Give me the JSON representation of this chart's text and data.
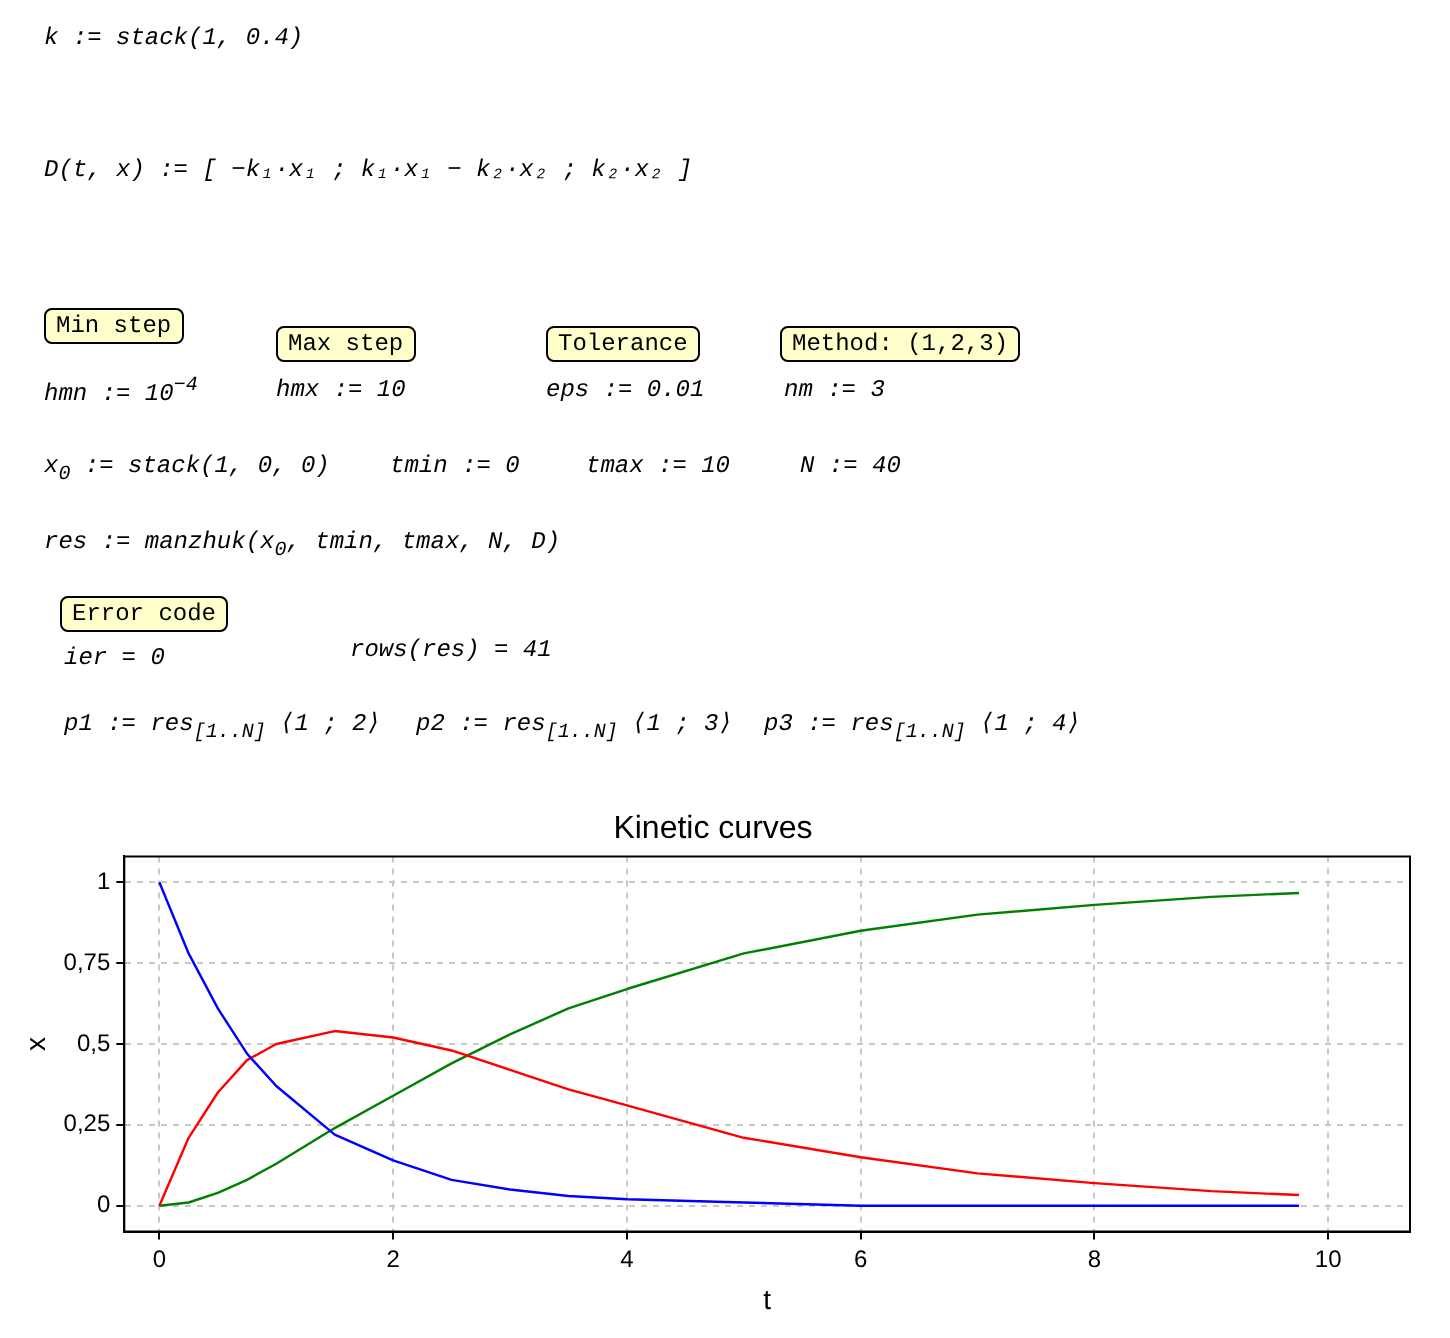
{
  "chart_data": {
    "type": "line",
    "title": "Kinetic curves",
    "xlabel": "t",
    "ylabel": "x",
    "x": [
      0,
      0.25,
      0.5,
      0.75,
      1,
      1.5,
      2,
      2.5,
      3,
      3.5,
      4,
      5,
      6,
      7,
      8,
      9,
      9.75
    ],
    "series": [
      {
        "color": "#0000ff",
        "values": [
          1,
          0.78,
          0.61,
          0.47,
          0.37,
          0.22,
          0.14,
          0.08,
          0.05,
          0.03,
          0.02,
          0.01,
          0,
          0,
          0,
          0,
          0
        ]
      },
      {
        "color": "#ff0000",
        "values": [
          0,
          0.21,
          0.35,
          0.45,
          0.5,
          0.54,
          0.52,
          0.48,
          0.42,
          0.36,
          0.31,
          0.21,
          0.15,
          0.1,
          0.07,
          0.045,
          0.033
        ]
      },
      {
        "color": "#008000",
        "values": [
          0,
          0.01,
          0.04,
          0.08,
          0.13,
          0.24,
          0.34,
          0.44,
          0.53,
          0.61,
          0.67,
          0.78,
          0.85,
          0.9,
          0.93,
          0.955,
          0.967
        ]
      }
    ],
    "xlim": [
      -0.3,
      10.7
    ],
    "xticks": [
      0,
      2,
      4,
      6,
      8,
      10
    ],
    "ylim": [
      -0.08,
      1.08
    ],
    "yticks": [
      0,
      {
        "value": 0.25,
        "label": "0,25"
      },
      {
        "value": 0.5,
        "label": "0,5"
      },
      {
        "value": 0.75,
        "label": "0,75"
      },
      1
    ],
    "grid": true,
    "line_style": "solid",
    "annotations": [
      "k := stack(1, 0.4)",
      "D(t, x) := [ −k₁·x₁ ; k₁·x₁ − k₂·x₂ ; k₂·x₂ ]",
      "Min step",
      "Max step",
      "Tolerance",
      "Method: (1,2,3)",
      "hmn := 10$^{−4}$",
      "hmx := 10",
      "eps := 0.01",
      "nm := 3",
      "x$_{0}$ := stack(1, 0, 0)",
      "tmin := 0",
      "tmax := 10",
      "N := 40",
      "res := manzhuk(x$_{0}$, tmin, tmax, N, D)",
      "Error code",
      "ier = 0",
      "rows(res) = 41",
      "p1 := res$_{[1..N]}$ ⟨1 ; 2⟩",
      "p2 := res$_{[1..N]}$ ⟨1 ; 3⟩",
      "p3 := res$_{[1..N]}$ ⟨1 ; 4⟩"
    ]
  }
}
